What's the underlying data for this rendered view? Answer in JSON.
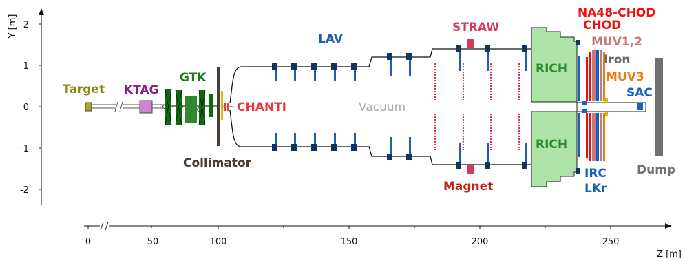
{
  "axes": {
    "y_label": "Y [m]",
    "x_label": "Z [m]",
    "y_ticks": [
      "2",
      "1",
      "0",
      "-1",
      "-2"
    ],
    "x_ticks": [
      "0",
      "50",
      "100",
      "150",
      "200",
      "250"
    ],
    "y_range": [
      -2.3,
      2.3
    ],
    "x_range": [
      0,
      272
    ]
  },
  "labels": {
    "target": "Target",
    "ktag": "KTAG",
    "gtk": "GTK",
    "collimator": "Collimator",
    "chanti": "CHANTI",
    "lav": "LAV",
    "vacuum": "Vacuum",
    "straw": "STRAW",
    "magnet": "Magnet",
    "rich_top": "RICH",
    "rich_bottom": "RICH",
    "na48_chod": "NA48-CHOD",
    "chod": "CHOD",
    "muv12": "MUV1,2",
    "iron": "Iron",
    "muv3": "MUV3",
    "sac": "SAC",
    "irc": "IRC",
    "lkr": "LKr",
    "dump": "Dump"
  },
  "colors": {
    "target": "#8a8a10",
    "ktag": "#8b1a8b",
    "gtk": "#1a7a1a",
    "collimator": "#4a3a34",
    "chanti": "#e83a3a",
    "lav": "#1f5fb0",
    "vacuum": "#aaaaaa",
    "straw": "#d8385a",
    "magnet": "#c81e1e",
    "rich": "#2e8b2e",
    "rich_fill": "#aee3a8",
    "na48_chod": "#ee1010",
    "muv12": "#c77a7a",
    "iron": "#6a6a6a",
    "muv3": "#f07a10",
    "sac": "#1560c0",
    "dump": "#707070"
  }
}
